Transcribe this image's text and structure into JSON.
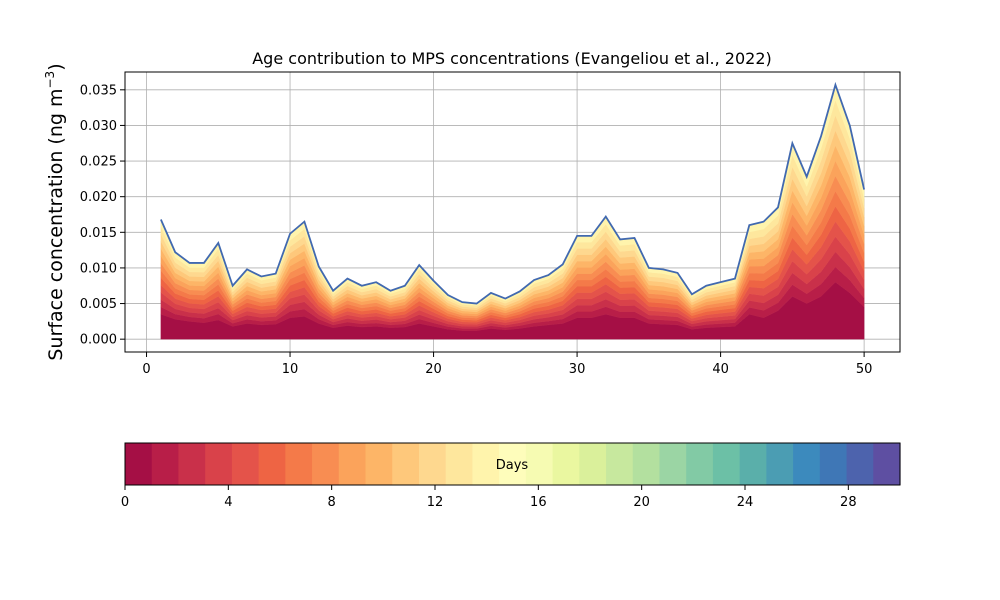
{
  "chart_data": {
    "type": "area",
    "title": "Age contribution to MPS concentrations (Evangeliou et al., 2022)",
    "ylabel": "Surface concentration (ng m",
    "ylabel_superscript": "−3",
    "ylabel_close": ")",
    "xlim": [
      -1.5,
      52.5
    ],
    "ylim": [
      -0.0018,
      0.0375
    ],
    "xticks": [
      0,
      10,
      20,
      30,
      40,
      50
    ],
    "yticks": [
      0.0,
      0.005,
      0.01,
      0.015,
      0.02,
      0.025,
      0.03,
      0.035
    ],
    "ytick_labels": [
      "0.000",
      "0.005",
      "0.010",
      "0.015",
      "0.020",
      "0.025",
      "0.030",
      "0.035"
    ],
    "grid": true,
    "x": [
      1,
      2,
      3,
      4,
      5,
      6,
      7,
      8,
      9,
      10,
      11,
      12,
      13,
      14,
      15,
      16,
      17,
      18,
      19,
      20,
      21,
      22,
      23,
      24,
      25,
      26,
      27,
      28,
      29,
      30,
      31,
      32,
      33,
      34,
      35,
      36,
      37,
      38,
      39,
      40,
      41,
      42,
      43,
      44,
      45,
      46,
      47,
      48,
      49,
      50
    ],
    "total": [
      0.0168,
      0.0122,
      0.0107,
      0.0107,
      0.0135,
      0.0075,
      0.0098,
      0.0088,
      0.0092,
      0.0148,
      0.0165,
      0.0102,
      0.0068,
      0.0085,
      0.0075,
      0.008,
      0.0068,
      0.0075,
      0.0104,
      0.0082,
      0.0062,
      0.0052,
      0.005,
      0.0065,
      0.0057,
      0.0067,
      0.0083,
      0.009,
      0.0105,
      0.0145,
      0.0145,
      0.0172,
      0.014,
      0.0142,
      0.01,
      0.0098,
      0.0093,
      0.0063,
      0.0075,
      0.008,
      0.0085,
      0.016,
      0.0165,
      0.0185,
      0.0275,
      0.0228,
      0.0285,
      0.0357,
      0.03,
      0.021
    ],
    "base": [
      0.0035,
      0.0028,
      0.0025,
      0.0023,
      0.0027,
      0.0018,
      0.0022,
      0.002,
      0.0021,
      0.003,
      0.0032,
      0.0022,
      0.0016,
      0.0019,
      0.0017,
      0.0018,
      0.0016,
      0.0017,
      0.0022,
      0.0018,
      0.0014,
      0.0012,
      0.0012,
      0.0015,
      0.0013,
      0.0015,
      0.0018,
      0.002,
      0.0022,
      0.003,
      0.003,
      0.0035,
      0.003,
      0.003,
      0.0022,
      0.0021,
      0.002,
      0.0014,
      0.0016,
      0.0017,
      0.0018,
      0.0035,
      0.003,
      0.004,
      0.006,
      0.005,
      0.006,
      0.008,
      0.0065,
      0.0045
    ],
    "colorbar": {
      "label": "Days",
      "ticks": [
        0,
        4,
        8,
        12,
        16,
        20,
        24,
        28
      ],
      "range": [
        0,
        30
      ],
      "colors": [
        "#a50f45",
        "#b81e48",
        "#c9304a",
        "#d9424a",
        "#e4534a",
        "#ee6444",
        "#f47a49",
        "#f88d52",
        "#fba35b",
        "#fdb567",
        "#fec87b",
        "#fed88f",
        "#fee79d",
        "#fff4ac",
        "#fefdbb",
        "#f6fbb2",
        "#eaf7a0",
        "#daf09b",
        "#c7e89e",
        "#b3e09f",
        "#9bd5a4",
        "#82caa5",
        "#6cc0a6",
        "#5aafaa",
        "#4b9db3",
        "#3c8abd",
        "#3f77b6",
        "#4d63ad",
        "#5e4fa2"
      ]
    },
    "outline_color": "#4169b0"
  }
}
